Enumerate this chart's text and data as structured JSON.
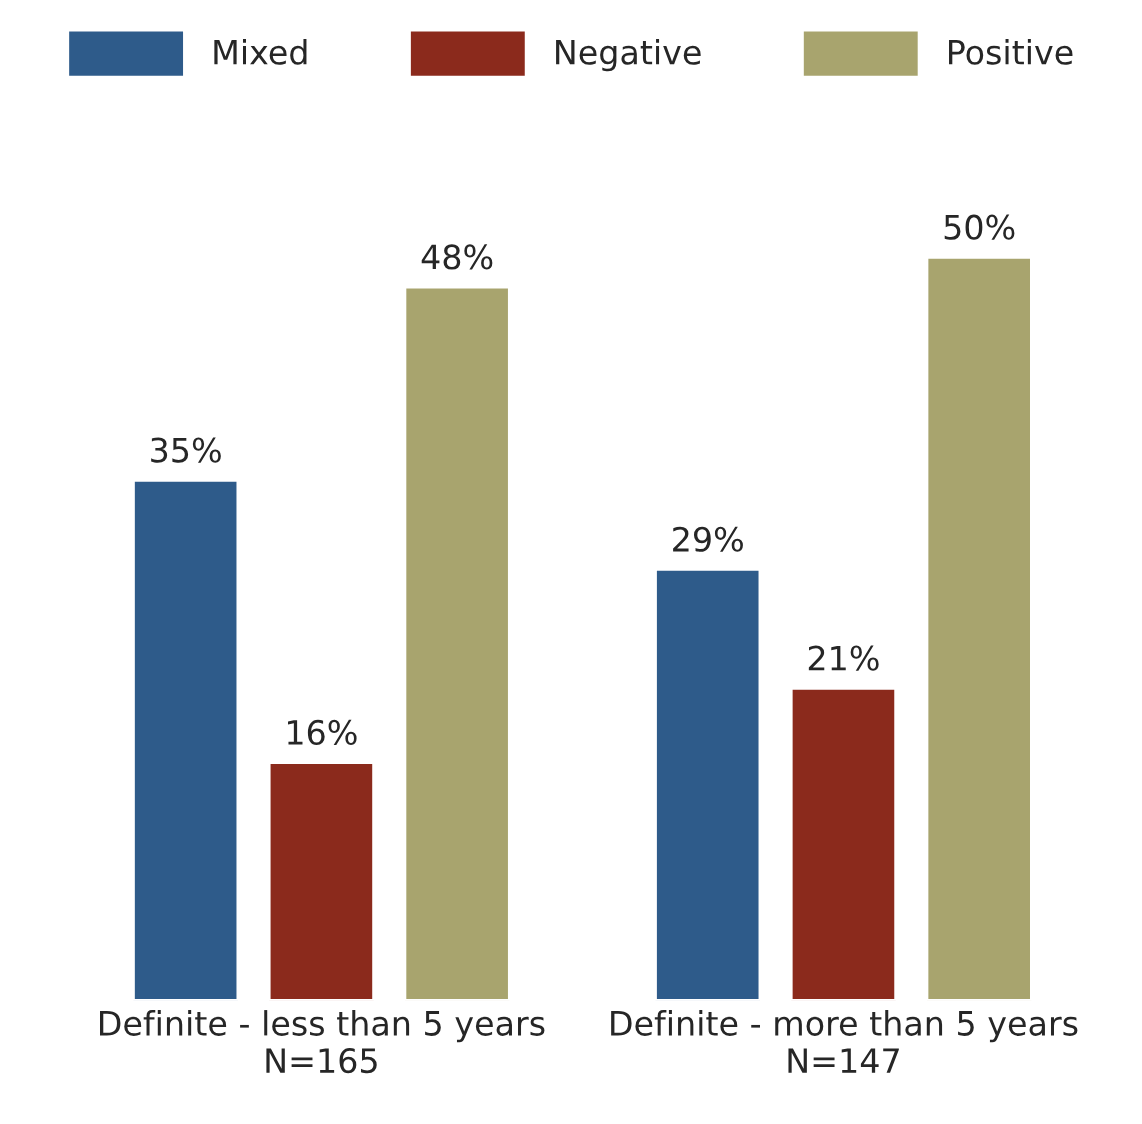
{
  "chart_data": {
    "type": "bar",
    "categories": [
      "Definite - less than 5 years\nN=165",
      "Definite - more than 5 years\nN=147"
    ],
    "series": [
      {
        "name": "Mixed",
        "color": "#2e5b8a",
        "values": [
          35,
          29
        ],
        "value_labels": [
          "35%",
          "29%"
        ]
      },
      {
        "name": "Negative",
        "color": "#8b2a1c",
        "values": [
          16,
          21
        ],
        "value_labels": [
          "16%",
          "21%"
        ]
      },
      {
        "name": "Positive",
        "color": "#a8a46e",
        "values": [
          48,
          50
        ],
        "value_labels": [
          "48%",
          "50%"
        ]
      }
    ],
    "legend": "top",
    "grid": false
  }
}
